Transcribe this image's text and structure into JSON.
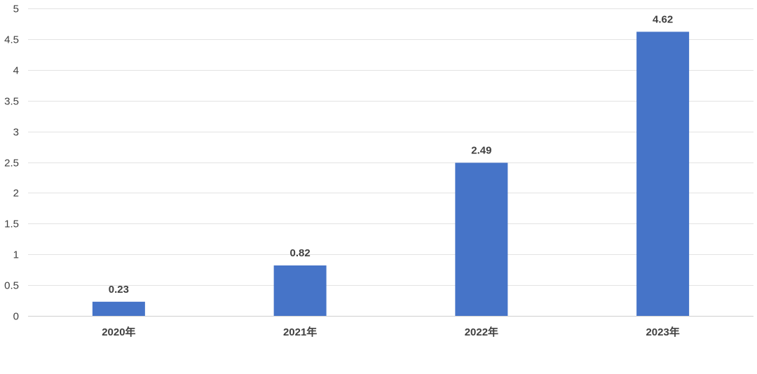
{
  "chart_data": {
    "type": "bar",
    "title": "",
    "xlabel": "",
    "ylabel": "",
    "categories": [
      "2020年",
      "2021年",
      "2022年",
      "2023年"
    ],
    "values": [
      0.23,
      0.82,
      2.49,
      4.62
    ],
    "data_labels": [
      "0.23",
      "0.82",
      "2.49",
      "4.62"
    ],
    "ylim": [
      0,
      5
    ],
    "yticks": [
      0,
      0.5,
      1,
      1.5,
      2,
      2.5,
      3,
      3.5,
      4,
      4.5,
      5
    ],
    "ytick_labels": [
      "0",
      "0.5",
      "1",
      "1.5",
      "2",
      "2.5",
      "3",
      "3.5",
      "4",
      "4.5",
      "5"
    ],
    "grid": true,
    "legend": "none",
    "colors": {
      "bar": "#4674C8",
      "grid": "#E3E3E3",
      "text": "#404040"
    }
  }
}
